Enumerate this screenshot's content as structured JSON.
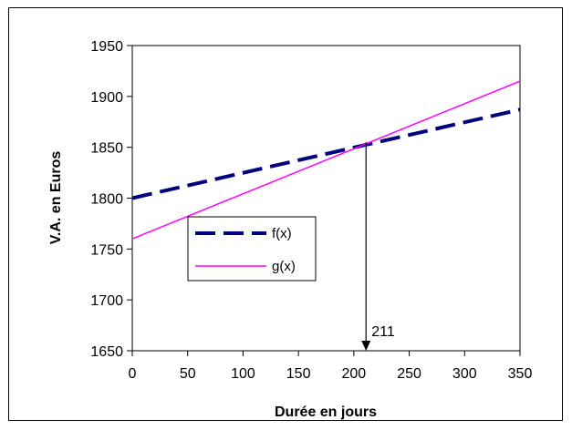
{
  "chart_data": {
    "type": "line",
    "xlabel": "Durée en jours",
    "ylabel": "V.A. en Euros",
    "xlim": [
      0,
      350
    ],
    "ylim": [
      1650,
      1950
    ],
    "xticks": [
      0,
      50,
      100,
      150,
      200,
      250,
      300,
      350
    ],
    "yticks": [
      1650,
      1700,
      1750,
      1800,
      1850,
      1900,
      1950
    ],
    "grid": false,
    "legend_placement": "center",
    "series": [
      {
        "name": "f(x)",
        "x": [
          0,
          350
        ],
        "y": [
          1800,
          1887
        ],
        "color": "#000080",
        "style": "dashed"
      },
      {
        "name": "g(x)",
        "x": [
          0,
          350
        ],
        "y": [
          1760,
          1915
        ],
        "color": "#ff00ff",
        "style": "solid"
      }
    ],
    "annotation": {
      "text": "211",
      "x": 211,
      "from_y": 1855,
      "to_y": 1650
    }
  }
}
